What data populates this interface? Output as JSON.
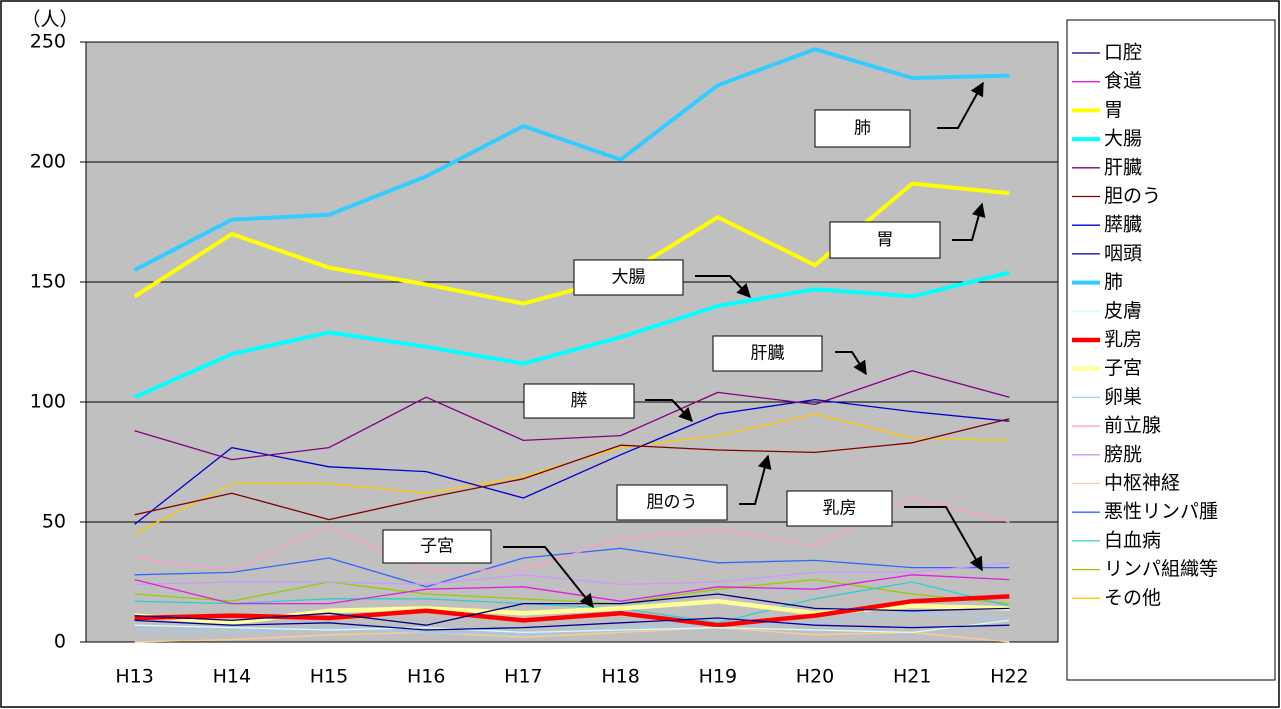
{
  "chart_data": {
    "type": "line",
    "y_unit": "（人）",
    "categories": [
      "H13",
      "H14",
      "H15",
      "H16",
      "H17",
      "H18",
      "H19",
      "H20",
      "H21",
      "H22"
    ],
    "ylim": [
      0,
      250
    ],
    "yticks": [
      0,
      50,
      100,
      150,
      200,
      250
    ],
    "grid": true,
    "background": "#c0c0c0",
    "legend": "right",
    "series": [
      {
        "name": "口腔",
        "color": "#000080",
        "width": 1.3,
        "values": [
          11,
          9,
          12,
          7,
          16,
          16,
          20,
          14,
          13,
          14
        ]
      },
      {
        "name": "食道",
        "color": "#e020e0",
        "width": 1.3,
        "values": [
          26,
          16,
          16,
          22,
          23,
          17,
          23,
          22,
          28,
          26
        ]
      },
      {
        "name": "胃",
        "color": "#ffff00",
        "width": 4,
        "values": [
          144,
          170,
          156,
          149,
          141,
          152,
          177,
          157,
          191,
          187
        ]
      },
      {
        "name": "大腸",
        "color": "#00ffff",
        "width": 4,
        "values": [
          102,
          120,
          129,
          123,
          116,
          127,
          140,
          147,
          144,
          154
        ]
      },
      {
        "name": "肝臓",
        "color": "#800080",
        "width": 1.3,
        "values": [
          88,
          76,
          81,
          102,
          84,
          86,
          104,
          99,
          113,
          102
        ]
      },
      {
        "name": "胆のう",
        "color": "#800000",
        "width": 1.3,
        "values": [
          53,
          62,
          51,
          60,
          68,
          82,
          80,
          79,
          83,
          93
        ]
      },
      {
        "name": "膵臓",
        "color": "#0000cc",
        "width": 1.3,
        "values": [
          49,
          81,
          73,
          71,
          60,
          78,
          95,
          101,
          96,
          92
        ]
      },
      {
        "name": "咽頭",
        "color": "#0000a0",
        "width": 1.3,
        "values": [
          9,
          7,
          8,
          5,
          6,
          8,
          10,
          7,
          6,
          7
        ]
      },
      {
        "name": "肺",
        "color": "#33ccff",
        "width": 4,
        "values": [
          155,
          176,
          178,
          194,
          215,
          201,
          232,
          247,
          235,
          236
        ]
      },
      {
        "name": "皮膚",
        "color": "#ccffff",
        "width": 1.3,
        "values": [
          7,
          6,
          5,
          6,
          4,
          5,
          6,
          5,
          4,
          9
        ]
      },
      {
        "name": "乳房",
        "color": "#ff0000",
        "width": 4.5,
        "values": [
          10,
          11,
          10,
          13,
          9,
          12,
          7,
          11,
          17,
          19
        ]
      },
      {
        "name": "子宮",
        "color": "#ffff99",
        "width": 4.5,
        "values": [
          11,
          8,
          13,
          14,
          12,
          14,
          17,
          12,
          15,
          14
        ]
      },
      {
        "name": "卵巣",
        "color": "#99ccff",
        "width": 1.3,
        "values": [
          5,
          4,
          6,
          4,
          3,
          6,
          7,
          8,
          12,
          10
        ]
      },
      {
        "name": "前立腺",
        "color": "#ff99cc",
        "width": 1.3,
        "values": [
          35,
          30,
          48,
          30,
          30,
          43,
          47,
          40,
          60,
          50
        ]
      },
      {
        "name": "膀胱",
        "color": "#cc99ff",
        "width": 1.3,
        "values": [
          24,
          25,
          25,
          24,
          28,
          24,
          25,
          29,
          29,
          33
        ]
      },
      {
        "name": "中枢神経",
        "color": "#ffcc99",
        "width": 1.3,
        "values": [
          0,
          1,
          3,
          4,
          2,
          4,
          6,
          3,
          4,
          0
        ]
      },
      {
        "name": "悪性リンパ腫",
        "color": "#3366ff",
        "width": 1.3,
        "values": [
          28,
          29,
          35,
          23,
          35,
          39,
          33,
          34,
          31,
          31
        ]
      },
      {
        "name": "白血病",
        "color": "#33cccc",
        "width": 1.3,
        "values": [
          17,
          16,
          18,
          18,
          16,
          14,
          8,
          18,
          25,
          15
        ]
      },
      {
        "name": "リンパ組織等",
        "color": "#99cc00",
        "width": 1.3,
        "values": [
          20,
          17,
          25,
          20,
          18,
          16,
          22,
          26,
          20,
          16
        ]
      },
      {
        "name": "その他",
        "color": "#ffcc00",
        "width": 1.3,
        "values": [
          45,
          66,
          66,
          62,
          69,
          81,
          86,
          95,
          85,
          84
        ]
      }
    ],
    "annotations": [
      "肺",
      "胃",
      "大腸",
      "肝臓",
      "膵",
      "胆のう",
      "乳房",
      "子宮"
    ]
  }
}
